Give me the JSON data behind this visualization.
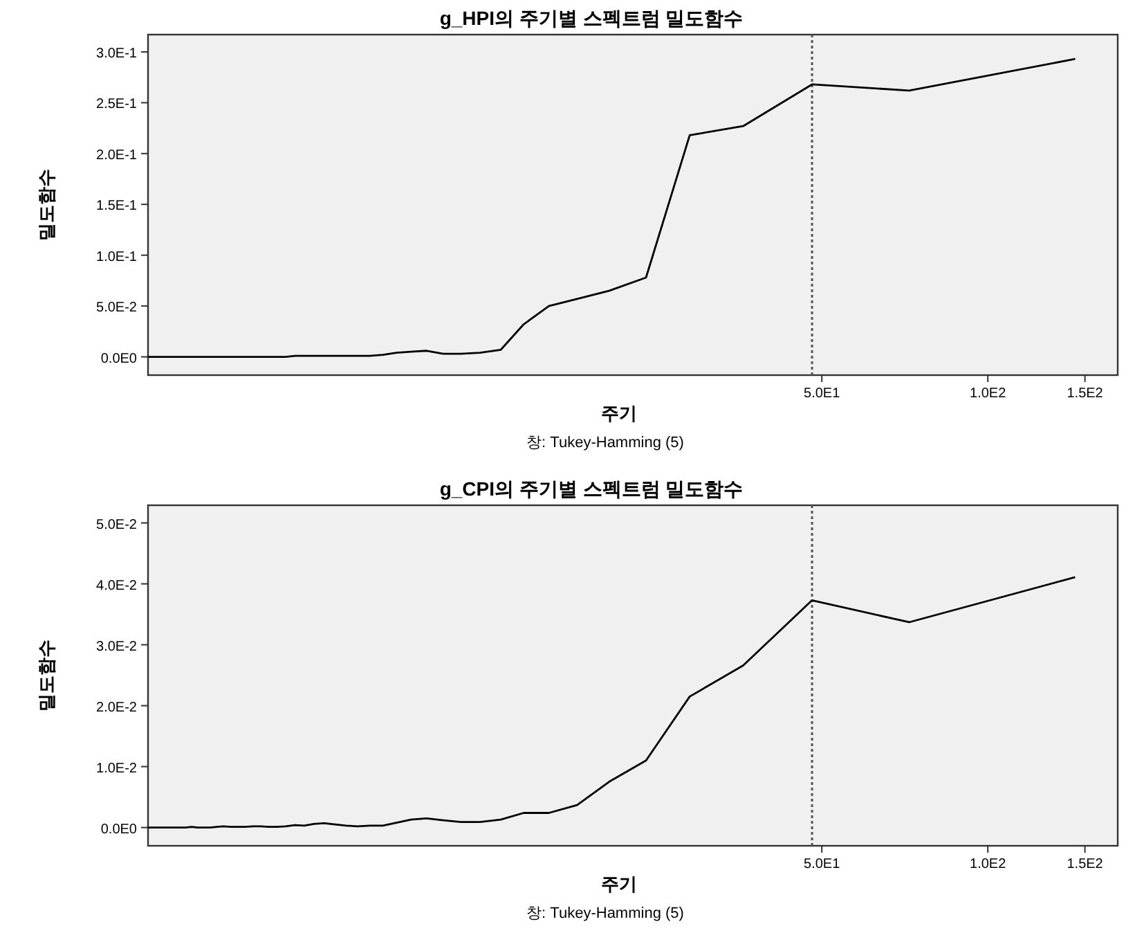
{
  "chart_data": [
    {
      "type": "line",
      "title": "g_HPI의 주기별 스펙트럼 밀도함수",
      "xlabel": "주기",
      "ylabel": "밀도함수",
      "annotations": [
        "창: Tukey-Hamming (5)"
      ],
      "log": "x",
      "xlim": [
        3,
        172
      ],
      "xticks": [
        {
          "value": 50,
          "label": "5.0E1"
        },
        {
          "value": 100,
          "label": "1.0E2"
        },
        {
          "value": 150,
          "label": "1.5E2"
        }
      ],
      "ylim": [
        -0.018,
        0.317
      ],
      "yticks": [
        {
          "value": 0,
          "label": "0.0E0"
        },
        {
          "value": 0.05,
          "label": "5.0E-2"
        },
        {
          "value": 0.1,
          "label": "1.0E-1"
        },
        {
          "value": 0.15,
          "label": "1.5E-1"
        },
        {
          "value": 0.2,
          "label": "2.0E-1"
        },
        {
          "value": 0.25,
          "label": "2.5E-1"
        },
        {
          "value": 0.3,
          "label": "3.0E-1"
        }
      ],
      "ref_lines": [
        {
          "axis": "x",
          "value": 48,
          "color": "#555555",
          "line_style": "dotted"
        }
      ],
      "x": [
        3,
        3.06,
        3.13,
        3.2,
        3.27,
        3.35,
        3.43,
        3.51,
        3.6,
        3.69,
        3.79,
        3.89,
        4,
        4.11,
        4.24,
        4.36,
        4.5,
        4.65,
        4.8,
        4.97,
        5.14,
        5.33,
        5.54,
        5.76,
        6,
        6.26,
        6.55,
        6.86,
        7.2,
        7.58,
        8,
        8.47,
        9,
        9.6,
        10.29,
        11.08,
        12,
        13.09,
        14.4,
        16,
        18,
        20.57,
        24,
        28.8,
        36,
        48,
        72,
        144
      ],
      "series": [
        {
          "color": "#000000",
          "values": [
            0,
            0,
            0,
            0,
            0,
            0,
            0,
            0,
            0,
            0,
            0,
            0,
            0,
            0,
            0,
            0,
            0,
            0,
            0,
            0,
            0,
            0,
            0.001,
            0.001,
            0.001,
            0.001,
            0.001,
            0.001,
            0.001,
            0.001,
            0.002,
            0.004,
            0.005,
            0.006,
            0.003,
            0.003,
            0.004,
            0.007,
            0.032,
            0.05,
            0.057,
            0.065,
            0.078,
            0.218,
            0.227,
            0.268,
            0.262,
            0.293
          ]
        }
      ]
    },
    {
      "type": "line",
      "title": "g_CPI의 주기별 스펙트럼 밀도함수",
      "xlabel": "주기",
      "ylabel": "밀도함수",
      "annotations": [
        "창: Tukey-Hamming (5)"
      ],
      "log": "x",
      "xlim": [
        3,
        172
      ],
      "xticks": [
        {
          "value": 50,
          "label": "5.0E1"
        },
        {
          "value": 100,
          "label": "1.0E2"
        },
        {
          "value": 150,
          "label": "1.5E2"
        }
      ],
      "ylim": [
        -0.003,
        0.0529
      ],
      "yticks": [
        {
          "value": 0,
          "label": "0.0E0"
        },
        {
          "value": 0.01,
          "label": "1.0E-2"
        },
        {
          "value": 0.02,
          "label": "2.0E-2"
        },
        {
          "value": 0.03,
          "label": "3.0E-2"
        },
        {
          "value": 0.04,
          "label": "4.0E-2"
        },
        {
          "value": 0.05,
          "label": "5.0E-2"
        }
      ],
      "ref_lines": [
        {
          "axis": "x",
          "value": 48,
          "color": "#555555",
          "line_style": "dotted"
        }
      ],
      "x": [
        3,
        3.06,
        3.13,
        3.2,
        3.27,
        3.35,
        3.43,
        3.51,
        3.6,
        3.69,
        3.79,
        3.89,
        4,
        4.11,
        4.24,
        4.36,
        4.5,
        4.65,
        4.8,
        4.97,
        5.14,
        5.33,
        5.54,
        5.76,
        6,
        6.26,
        6.55,
        6.86,
        7.2,
        7.58,
        8,
        8.47,
        9,
        9.6,
        10.29,
        11.08,
        12,
        13.09,
        14.4,
        16,
        18,
        20.57,
        24,
        28.8,
        36,
        48,
        72,
        144
      ],
      "series": [
        {
          "color": "#000000",
          "values": [
            0,
            0,
            0,
            0,
            0,
            0,
            0,
            0,
            0.0001,
            0,
            0,
            0,
            0.0001,
            0.0002,
            0.0001,
            0.0001,
            0.0001,
            0.0002,
            0.0002,
            0.0001,
            0.0001,
            0.0002,
            0.0004,
            0.0003,
            0.0006,
            0.0007,
            0.0005,
            0.0003,
            0.0002,
            0.0003,
            0.0003,
            0.0008,
            0.0013,
            0.0015,
            0.0012,
            0.0009,
            0.0009,
            0.0013,
            0.0024,
            0.0024,
            0.0037,
            0.0075,
            0.011,
            0.0215,
            0.0266,
            0.0373,
            0.0337,
            0.0411
          ]
        }
      ]
    }
  ]
}
